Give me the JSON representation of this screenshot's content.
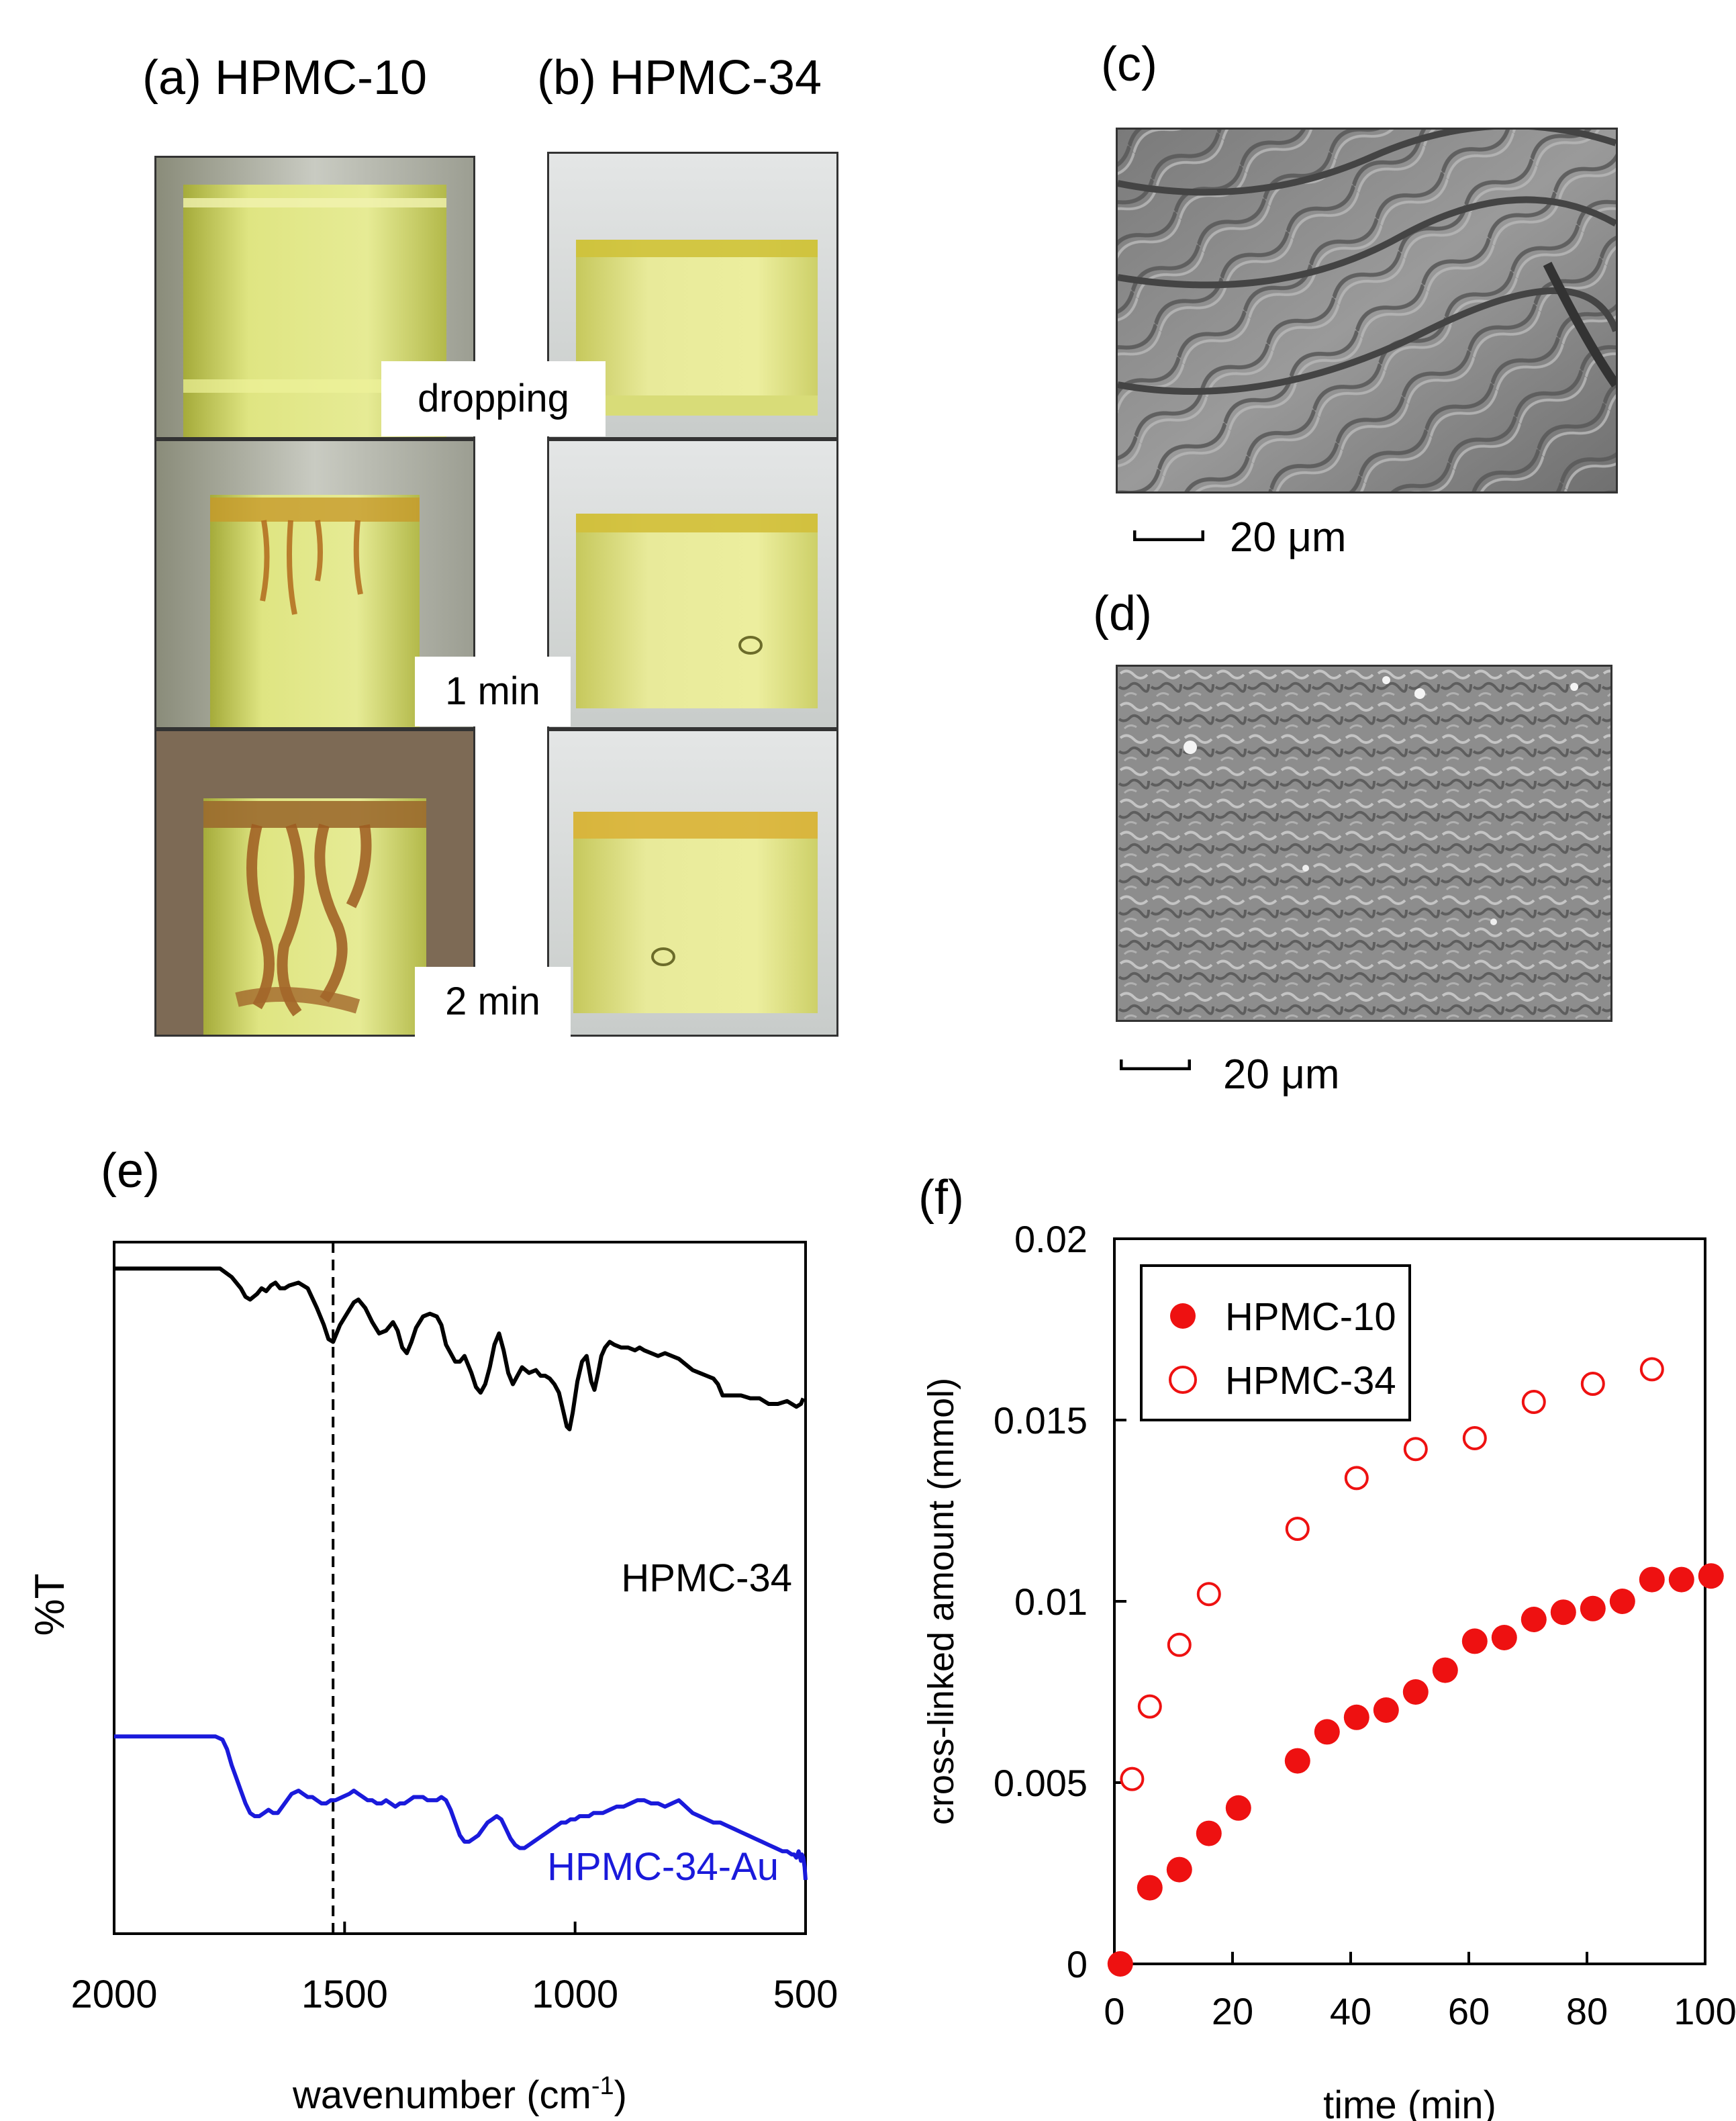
{
  "panels": {
    "a": {
      "label": "(a) HPMC-10"
    },
    "b": {
      "label": "(b) HPMC-34"
    },
    "c": {
      "label": "(c)",
      "scale": "20 μm"
    },
    "d": {
      "label": "(d)",
      "scale": "20 μm"
    },
    "e": {
      "label": "(e)"
    },
    "f": {
      "label": "(f)"
    }
  },
  "photo_rows": [
    {
      "time_label": "dropping"
    },
    {
      "time_label": "1 min"
    },
    {
      "time_label": "2 min"
    }
  ],
  "colors": {
    "hpmc10_red": "#ee1111",
    "ftir_black": "#000000",
    "ftir_blue": "#1a1adb",
    "liquid": "#d6de7a"
  },
  "chart_data": [
    {
      "id": "e",
      "type": "line",
      "title": "",
      "xlabel": "wavenumber (cm",
      "xlabel_sup": "-1",
      "xlabel_close": ")",
      "ylabel": "%T",
      "xlim": [
        2000,
        500
      ],
      "xticks": [
        "2000",
        "1500",
        "1000",
        "500"
      ],
      "xtick_values": [
        2000,
        1500,
        1000,
        500
      ],
      "reference_line_x": 1525,
      "ylim": [
        0,
        100
      ],
      "series": [
        {
          "name": "HPMC-34",
          "color": "#000000",
          "x": [
            2000,
            1800,
            1770,
            1745,
            1725,
            1715,
            1705,
            1690,
            1680,
            1670,
            1660,
            1650,
            1640,
            1630,
            1620,
            1600,
            1580,
            1560,
            1545,
            1535,
            1525,
            1510,
            1495,
            1480,
            1470,
            1455,
            1440,
            1425,
            1410,
            1395,
            1385,
            1375,
            1365,
            1355,
            1345,
            1330,
            1315,
            1300,
            1290,
            1280,
            1270,
            1260,
            1250,
            1240,
            1225,
            1215,
            1205,
            1195,
            1185,
            1175,
            1165,
            1155,
            1145,
            1135,
            1125,
            1115,
            1100,
            1085,
            1075,
            1065,
            1055,
            1045,
            1035,
            1025,
            1018,
            1012,
            1005,
            995,
            985,
            975,
            965,
            958,
            950,
            943,
            935,
            925,
            915,
            900,
            885,
            870,
            860,
            850,
            835,
            820,
            805,
            790,
            775,
            760,
            745,
            730,
            715,
            700,
            690,
            680,
            660,
            640,
            620,
            600,
            580,
            560,
            540,
            520,
            510,
            505
          ],
          "y": [
            93,
            93,
            93,
            90,
            86,
            83,
            82,
            84,
            86,
            85,
            87,
            88,
            86,
            86,
            87,
            88,
            86,
            79,
            73,
            68,
            67,
            73,
            77,
            81,
            82,
            79,
            74,
            70,
            71,
            74,
            71,
            65,
            63,
            67,
            72,
            76,
            77,
            76,
            73,
            66,
            63,
            60,
            60,
            62,
            56,
            51,
            49,
            52,
            58,
            66,
            70,
            64,
            56,
            52,
            55,
            58,
            56,
            57,
            55,
            55,
            54,
            52,
            49,
            42,
            37,
            36,
            42,
            53,
            60,
            62,
            53,
            50,
            56,
            62,
            65,
            67,
            66,
            65,
            65,
            64,
            65,
            64,
            63,
            62,
            63,
            62,
            61,
            59,
            57,
            56,
            55,
            54,
            52,
            48,
            48,
            48,
            47,
            47,
            45,
            45,
            46,
            44,
            45,
            47
          ]
        },
        {
          "name": "HPMC-34-Au",
          "color": "#1a1adb",
          "x": [
            2000,
            1800,
            1780,
            1765,
            1755,
            1745,
            1735,
            1725,
            1715,
            1705,
            1695,
            1685,
            1675,
            1665,
            1655,
            1645,
            1630,
            1615,
            1600,
            1590,
            1580,
            1570,
            1560,
            1550,
            1540,
            1530,
            1520,
            1505,
            1490,
            1480,
            1470,
            1460,
            1450,
            1440,
            1430,
            1420,
            1410,
            1400,
            1390,
            1380,
            1370,
            1360,
            1350,
            1340,
            1330,
            1320,
            1310,
            1300,
            1290,
            1280,
            1270,
            1260,
            1250,
            1240,
            1230,
            1220,
            1210,
            1200,
            1190,
            1180,
            1170,
            1160,
            1150,
            1140,
            1130,
            1120,
            1110,
            1100,
            1090,
            1080,
            1070,
            1060,
            1050,
            1040,
            1030,
            1020,
            1010,
            1000,
            990,
            980,
            970,
            960,
            950,
            940,
            925,
            910,
            895,
            880,
            865,
            850,
            835,
            820,
            805,
            790,
            775,
            760,
            745,
            730,
            715,
            700,
            685,
            670,
            655,
            640,
            625,
            610,
            595,
            580,
            565,
            550,
            540,
            530,
            525,
            520,
            515,
            510,
            508,
            505,
            502,
            500
          ],
          "y": [
            45,
            45,
            45,
            44,
            41,
            36,
            32,
            28,
            24,
            21,
            20,
            20,
            21,
            22,
            21,
            21,
            24,
            27,
            28,
            27,
            26,
            26,
            25,
            24,
            24,
            25,
            25,
            26,
            27,
            28,
            27,
            26,
            25,
            25,
            24,
            24,
            25,
            24,
            23,
            24,
            24,
            25,
            26,
            26,
            26,
            25,
            25,
            25,
            26,
            25,
            22,
            18,
            14,
            12,
            12,
            13,
            14,
            16,
            18,
            19,
            20,
            19,
            16,
            13,
            11,
            10,
            10,
            11,
            12,
            13,
            14,
            15,
            16,
            17,
            18,
            18,
            19,
            19,
            20,
            20,
            20,
            21,
            21,
            21,
            22,
            23,
            23,
            24,
            25,
            25,
            24,
            24,
            23,
            24,
            25,
            23,
            21,
            20,
            19,
            18,
            18,
            17,
            16,
            15,
            14,
            13,
            12,
            11,
            10,
            9,
            9,
            8,
            8,
            7,
            9,
            6,
            8,
            7,
            4,
            0
          ]
        }
      ]
    },
    {
      "id": "f",
      "type": "scatter",
      "title": "",
      "xlabel": "time (min)",
      "ylabel": "cross-linked amount (mmol)",
      "xlim": [
        0,
        100
      ],
      "ylim": [
        0,
        0.02
      ],
      "xticks": [
        "0",
        "20",
        "40",
        "60",
        "80",
        "100"
      ],
      "xtick_values": [
        0,
        20,
        40,
        60,
        80,
        100
      ],
      "yticks": [
        "0",
        "0.005",
        "0.01",
        "0.015",
        "0.02"
      ],
      "ytick_values": [
        0,
        0.005,
        0.01,
        0.015,
        0.02
      ],
      "legend_position": "top-left",
      "series": [
        {
          "name": "HPMC-10",
          "marker": "filled-circle",
          "color": "#ee1111",
          "x": [
            1,
            6,
            11,
            16,
            21,
            31,
            36,
            41,
            46,
            51,
            56,
            61,
            66,
            71,
            76,
            81,
            86,
            91,
            96,
            101
          ],
          "y": [
            0.0,
            0.0021,
            0.0026,
            0.0036,
            0.0043,
            0.0056,
            0.0064,
            0.0068,
            0.007,
            0.0075,
            0.0081,
            0.0089,
            0.009,
            0.0095,
            0.0097,
            0.0098,
            0.01,
            0.0106,
            0.0106,
            0.0107
          ]
        },
        {
          "name": "HPMC-34",
          "marker": "open-circle",
          "color": "#ee1111",
          "x": [
            3,
            6,
            11,
            16,
            31,
            41,
            51,
            61,
            71,
            81,
            91
          ],
          "y": [
            0.0051,
            0.0071,
            0.0088,
            0.0102,
            0.012,
            0.0134,
            0.0142,
            0.0145,
            0.0155,
            0.016,
            0.0164
          ]
        }
      ]
    }
  ]
}
